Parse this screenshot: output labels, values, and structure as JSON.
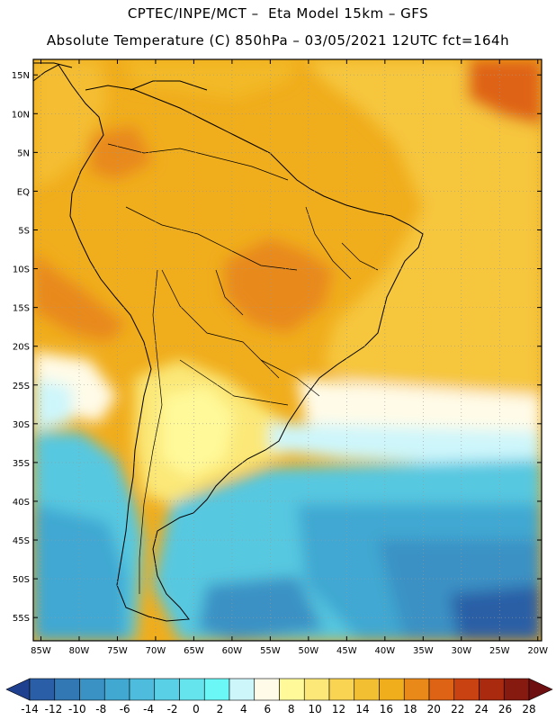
{
  "header": {
    "line1": "CPTEC/INPE/MCT –  Eta Model 15km – GFS",
    "line2": "Absolute Temperature (C) 850hPa – 03/05/2021 12UTC fct=164h"
  },
  "map": {
    "lon_labels": [
      "85W",
      "80W",
      "75W",
      "70W",
      "65W",
      "60W",
      "55W",
      "50W",
      "45W",
      "40W",
      "35W",
      "30W",
      "25W",
      "20W"
    ],
    "lat_labels": [
      "15N",
      "10N",
      "5N",
      "EQ",
      "5S",
      "10S",
      "15S",
      "20S",
      "25S",
      "30S",
      "35S",
      "40S",
      "45S",
      "50S",
      "55S"
    ],
    "lon_values": [
      -85,
      -80,
      -75,
      -70,
      -65,
      -60,
      -55,
      -50,
      -45,
      -40,
      -35,
      -30,
      -25,
      -20
    ],
    "lat_values": [
      15,
      10,
      5,
      0,
      -5,
      -10,
      -15,
      -20,
      -25,
      -30,
      -35,
      -40,
      -45,
      -50,
      -55
    ],
    "lon_range": [
      -86,
      -19.5
    ],
    "lat_range": [
      -58,
      17
    ],
    "gridlines": "dotted",
    "background_color": "#f0ad1c",
    "regions": [
      {
        "name": "tropical-warm",
        "color": "#f0ad1c"
      },
      {
        "name": "south-cool",
        "color": "#57c8e0"
      },
      {
        "name": "ocean-cold",
        "color": "#3a9ccb"
      }
    ]
  },
  "colorbar": {
    "labels": [
      "-14",
      "-12",
      "-10",
      "-8",
      "-6",
      "-4",
      "-2",
      "0",
      "2",
      "4",
      "6",
      "8",
      "10",
      "12",
      "14",
      "16",
      "18",
      "20",
      "22",
      "24",
      "26",
      "28"
    ],
    "colors": [
      "#1f3f8f",
      "#2a5ea6",
      "#3178b4",
      "#3a91c4",
      "#41a8d2",
      "#4ebcdc",
      "#5ad0e6",
      "#66e4ee",
      "#6cf7f7",
      "#cdf6fb",
      "#fffbe8",
      "#fff99a",
      "#fbe878",
      "#f8d452",
      "#f2bf33",
      "#f0ad1c",
      "#e8891a",
      "#df6314",
      "#c94312",
      "#aa2a10",
      "#861a10",
      "#6e0f12"
    ]
  }
}
